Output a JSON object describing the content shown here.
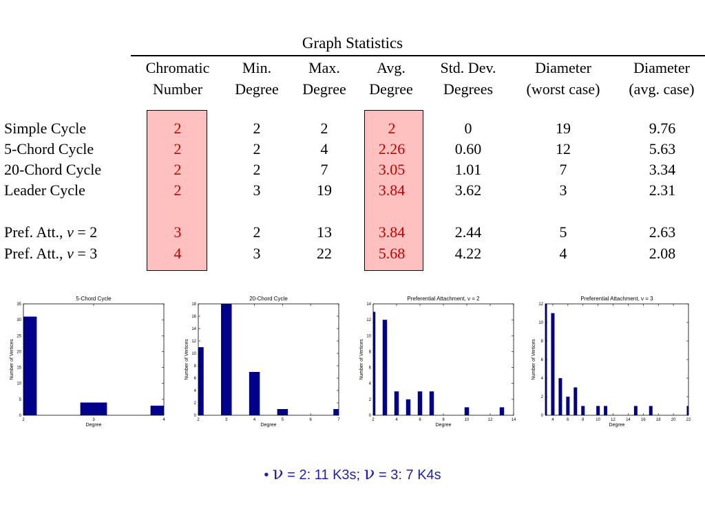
{
  "table": {
    "title": "Graph Statistics",
    "headers": [
      {
        "line1": "Chromatic",
        "line2": "Number"
      },
      {
        "line1": "Min.",
        "line2": "Degree"
      },
      {
        "line1": "Max.",
        "line2": "Degree"
      },
      {
        "line1": "Avg.",
        "line2": "Degree"
      },
      {
        "line1": "Std. Dev.",
        "line2": "Degrees"
      },
      {
        "line1": "Diameter",
        "line2": "(worst case)"
      },
      {
        "line1": "Diameter",
        "line2": "(avg. case)"
      }
    ],
    "rows": [
      {
        "label": "Simple Cycle",
        "cells": [
          "2",
          "2",
          "2",
          "2",
          "0",
          "19",
          "9.76"
        ]
      },
      {
        "label": "5-Chord Cycle",
        "cells": [
          "2",
          "2",
          "4",
          "2.26",
          "0.60",
          "12",
          "5.63"
        ]
      },
      {
        "label": "20-Chord Cycle",
        "cells": [
          "2",
          "2",
          "7",
          "3.05",
          "1.01",
          "7",
          "3.34"
        ]
      },
      {
        "label": "Leader Cycle",
        "cells": [
          "2",
          "3",
          "19",
          "3.84",
          "3.62",
          "3",
          "2.31"
        ]
      },
      {
        "label_prefix": "Pref. Att., ",
        "label_var": "ν",
        "label_suffix": " = 2",
        "cells": [
          "3",
          "2",
          "13",
          "3.84",
          "2.44",
          "5",
          "2.63"
        ]
      },
      {
        "label_prefix": "Pref. Att., ",
        "label_var": "ν",
        "label_suffix": " = 3",
        "cells": [
          "4",
          "3",
          "22",
          "5.68",
          "4.22",
          "4",
          "2.08"
        ]
      }
    ],
    "highlight_color": "#ffc0c0",
    "highlight_text_color": "#c00000"
  },
  "chart_data": [
    {
      "type": "bar",
      "title": "5-Chord Cycle",
      "xlabel": "Degree",
      "ylabel": "Number of Vertices",
      "x": [
        2,
        3,
        4
      ],
      "values": [
        31,
        4,
        3
      ],
      "xlim": [
        2,
        4
      ],
      "ylim": [
        0,
        35
      ],
      "xticks": [
        2,
        3,
        4
      ],
      "yticks": [
        0,
        5,
        10,
        15,
        20,
        25,
        30,
        35
      ],
      "color": "#00008b"
    },
    {
      "type": "bar",
      "title": "20-Chord Cycle",
      "xlabel": "Degree",
      "ylabel": "Number of Vertices",
      "x": [
        2,
        3,
        4,
        5,
        7
      ],
      "values": [
        11,
        18,
        7,
        1,
        1
      ],
      "xlim": [
        2,
        7
      ],
      "ylim": [
        0,
        18
      ],
      "xticks": [
        2,
        3,
        4,
        5,
        6,
        7
      ],
      "yticks": [
        0,
        2,
        4,
        6,
        8,
        10,
        12,
        14,
        16,
        18
      ],
      "color": "#00008b"
    },
    {
      "type": "bar",
      "title": "Preferential Attachment, ν = 2",
      "xlabel": "Degree",
      "ylabel": "Number of Vertices",
      "x": [
        2,
        3,
        4,
        5,
        6,
        7,
        10,
        13
      ],
      "values": [
        13,
        12,
        3,
        2,
        3,
        3,
        1,
        1
      ],
      "xlim": [
        2,
        14
      ],
      "ylim": [
        0,
        14
      ],
      "xticks": [
        2,
        4,
        6,
        8,
        10,
        12,
        14
      ],
      "yticks": [
        0,
        2,
        4,
        6,
        8,
        10,
        12,
        14
      ],
      "color": "#00008b"
    },
    {
      "type": "bar",
      "title": "Preferential Attachment, ν = 3",
      "xlabel": "Degree",
      "ylabel": "Number of Vertices",
      "x": [
        3,
        4,
        5,
        6,
        7,
        8,
        10,
        11,
        15,
        17,
        22
      ],
      "values": [
        12,
        11,
        4,
        2,
        3,
        1,
        1,
        1,
        1,
        1,
        1
      ],
      "xlim": [
        3,
        22
      ],
      "ylim": [
        0,
        12
      ],
      "xticks": [
        4,
        6,
        8,
        10,
        12,
        14,
        16,
        18,
        20,
        22
      ],
      "yticks": [
        0,
        2,
        4,
        6,
        8,
        10,
        12
      ],
      "color": "#00008b"
    }
  ],
  "note": {
    "bullet": "•",
    "var": "ν",
    "part1": " = 2: 11 K3s; ",
    "part2": " = 3: 7 K4s"
  }
}
